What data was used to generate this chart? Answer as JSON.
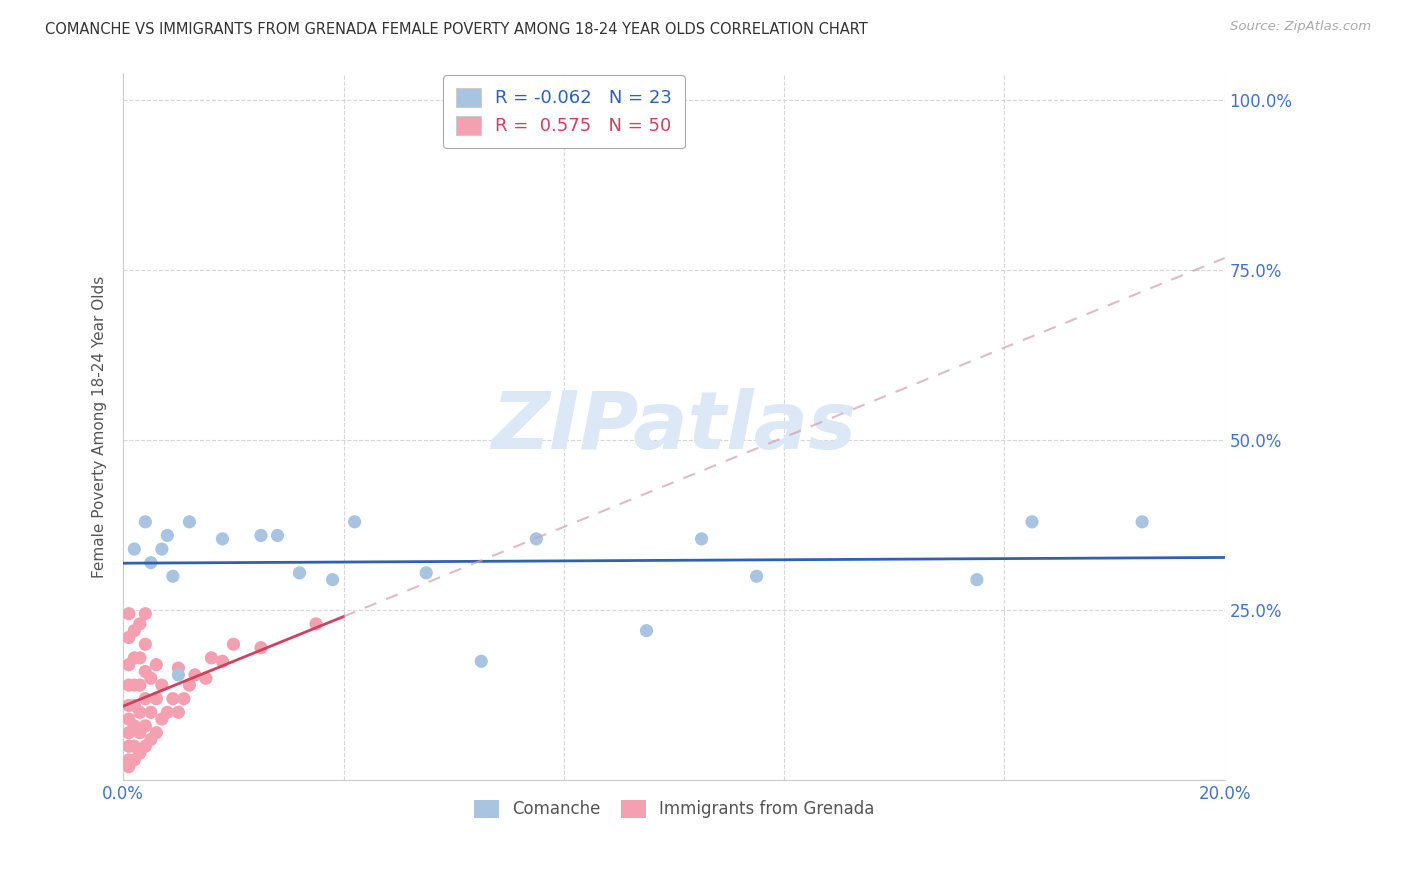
{
  "title": "COMANCHE VS IMMIGRANTS FROM GRENADA FEMALE POVERTY AMONG 18-24 YEAR OLDS CORRELATION CHART",
  "source": "Source: ZipAtlas.com",
  "ylabel": "Female Poverty Among 18-24 Year Olds",
  "xlim": [
    0,
    0.2
  ],
  "ylim": [
    0,
    1.04
  ],
  "xticks": [
    0.0,
    0.04,
    0.08,
    0.12,
    0.16,
    0.2
  ],
  "xticklabels": [
    "0.0%",
    "",
    "",
    "",
    "",
    "20.0%"
  ],
  "yticks": [
    0.0,
    0.25,
    0.5,
    0.75,
    1.0
  ],
  "yticklabels_right": [
    "",
    "25.0%",
    "50.0%",
    "75.0%",
    "100.0%"
  ],
  "comanche_R": -0.062,
  "comanche_N": 23,
  "grenada_R": 0.575,
  "grenada_N": 50,
  "comanche_color": "#a8c4e0",
  "grenada_color": "#f4a0b0",
  "comanche_line_color": "#3060b0",
  "grenada_line_color": "#d04060",
  "grenada_line_solid_xmax": 0.04,
  "axis_color": "#4472c4",
  "watermark_text": "ZIPatlas",
  "watermark_color": "#dce8f5",
  "comanche_x": [
    0.002,
    0.004,
    0.005,
    0.007,
    0.008,
    0.009,
    0.01,
    0.012,
    0.018,
    0.025,
    0.028,
    0.032,
    0.038,
    0.042,
    0.055,
    0.065,
    0.075,
    0.095,
    0.105,
    0.115,
    0.155,
    0.165,
    0.185
  ],
  "comanche_y": [
    0.34,
    0.38,
    0.32,
    0.34,
    0.36,
    0.3,
    0.155,
    0.38,
    0.355,
    0.36,
    0.36,
    0.305,
    0.295,
    0.38,
    0.305,
    0.175,
    0.355,
    0.22,
    0.355,
    0.3,
    0.295,
    0.38,
    0.38
  ],
  "grenada_x": [
    0.001,
    0.001,
    0.001,
    0.001,
    0.001,
    0.001,
    0.001,
    0.001,
    0.001,
    0.001,
    0.002,
    0.002,
    0.002,
    0.002,
    0.002,
    0.002,
    0.002,
    0.003,
    0.003,
    0.003,
    0.003,
    0.003,
    0.003,
    0.004,
    0.004,
    0.004,
    0.004,
    0.004,
    0.004,
    0.005,
    0.005,
    0.005,
    0.006,
    0.006,
    0.006,
    0.007,
    0.007,
    0.008,
    0.009,
    0.01,
    0.01,
    0.011,
    0.012,
    0.013,
    0.015,
    0.016,
    0.018,
    0.02,
    0.025,
    0.035
  ],
  "grenada_y": [
    0.02,
    0.03,
    0.05,
    0.07,
    0.09,
    0.11,
    0.14,
    0.17,
    0.21,
    0.245,
    0.03,
    0.05,
    0.08,
    0.11,
    0.14,
    0.18,
    0.22,
    0.04,
    0.07,
    0.1,
    0.14,
    0.18,
    0.23,
    0.05,
    0.08,
    0.12,
    0.16,
    0.2,
    0.245,
    0.06,
    0.1,
    0.15,
    0.07,
    0.12,
    0.17,
    0.09,
    0.14,
    0.1,
    0.12,
    0.1,
    0.165,
    0.12,
    0.14,
    0.155,
    0.15,
    0.18,
    0.175,
    0.2,
    0.195,
    0.23
  ]
}
